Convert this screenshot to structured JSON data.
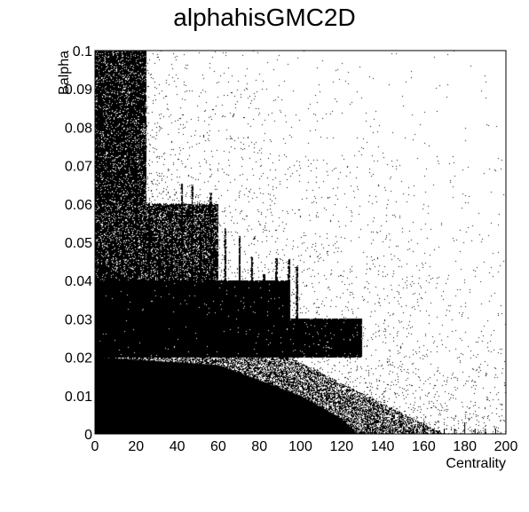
{
  "chart_data": {
    "type": "scatter",
    "title": "alphahisGMC2D",
    "xlabel": "Centrality",
    "ylabel": "Balpha",
    "xlim": [
      0,
      200
    ],
    "ylim": [
      0,
      0.1
    ],
    "x_ticks": [
      0,
      20,
      40,
      60,
      80,
      100,
      120,
      140,
      160,
      180,
      200
    ],
    "y_ticks": [
      0,
      0.01,
      0.02,
      0.03,
      0.04,
      0.05,
      0.06,
      0.07,
      0.08,
      0.09,
      0.1
    ],
    "x_tick_labels": [
      "0",
      "20",
      "40",
      "60",
      "80",
      "100",
      "120",
      "140",
      "160",
      "180",
      "200"
    ],
    "y_tick_labels": [
      "0",
      "0.01",
      "0.02",
      "0.03",
      "0.04",
      "0.05",
      "0.06",
      "0.07",
      "0.08",
      "0.09",
      "0.1"
    ],
    "grid": false,
    "legend": "none",
    "marker_color": "#000000",
    "density_bands": [
      {
        "x_range": [
          0,
          110
        ],
        "y_range": [
          0,
          0.02
        ],
        "density": "saturated"
      },
      {
        "x_range": [
          0,
          160
        ],
        "y_range": [
          0,
          0.03
        ],
        "density": "high"
      },
      {
        "x_range": [
          0,
          90
        ],
        "y_range": [
          0.03,
          0.04
        ],
        "density": "high"
      },
      {
        "x_range": [
          0,
          60
        ],
        "y_range": [
          0.04,
          0.06
        ],
        "density": "medium"
      },
      {
        "x_range": [
          0,
          30
        ],
        "y_range": [
          0.06,
          0.1
        ],
        "density": "medium"
      },
      {
        "x_range": [
          0,
          200
        ],
        "y_range": [
          0,
          0.1
        ],
        "density": "sparse"
      }
    ]
  }
}
